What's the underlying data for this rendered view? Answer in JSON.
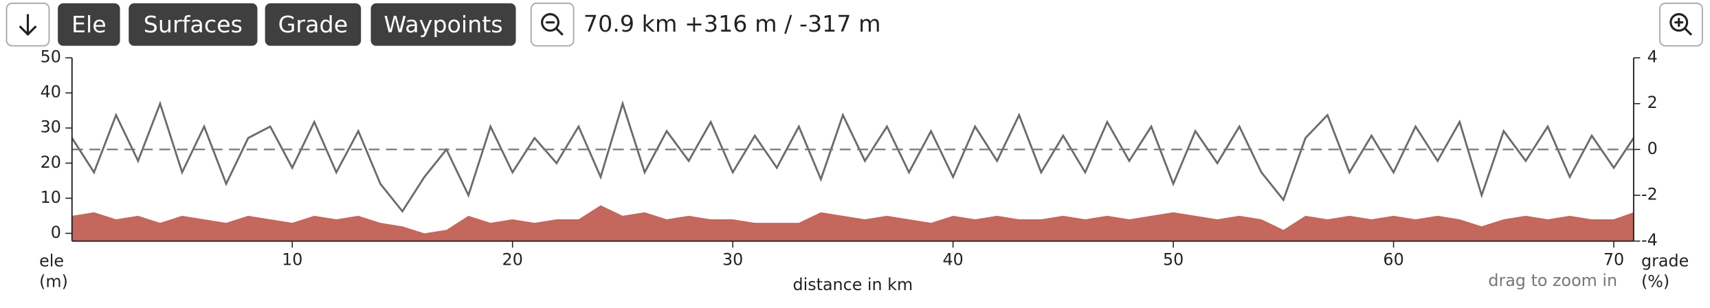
{
  "toolbar": {
    "buttons": [
      "Ele",
      "Surfaces",
      "Grade",
      "Waypoints"
    ],
    "summary": "70.9 km +316 m / -317 m"
  },
  "chart_data": {
    "type": "area-line",
    "x_label": "distance in km",
    "y_label": [
      "ele",
      "(m)"
    ],
    "y2_label": [
      "grade",
      "(%)"
    ],
    "hint": "drag to zoom in",
    "x": [
      0,
      1,
      2,
      3,
      4,
      5,
      6,
      7,
      8,
      9,
      10,
      11,
      12,
      13,
      14,
      15,
      16,
      17,
      18,
      19,
      20,
      21,
      22,
      23,
      24,
      25,
      26,
      27,
      28,
      29,
      30,
      31,
      32,
      33,
      34,
      35,
      36,
      37,
      38,
      39,
      40,
      41,
      42,
      43,
      44,
      45,
      46,
      47,
      48,
      49,
      50,
      51,
      52,
      53,
      54,
      55,
      56,
      57,
      58,
      59,
      60,
      61,
      62,
      63,
      64,
      65,
      66,
      67,
      68,
      69,
      70,
      70.9
    ],
    "series": [
      {
        "name": "ele",
        "color": "#c4675c",
        "values": [
          5,
          6,
          4,
          5,
          3,
          5,
          4,
          3,
          5,
          4,
          3,
          5,
          4,
          5,
          3,
          2,
          0,
          1,
          5,
          3,
          4,
          3,
          4,
          4,
          8,
          5,
          6,
          4,
          5,
          4,
          4,
          3,
          3,
          3,
          6,
          5,
          4,
          5,
          4,
          3,
          5,
          4,
          5,
          4,
          4,
          5,
          4,
          5,
          4,
          5,
          6,
          5,
          4,
          5,
          4,
          1,
          5,
          4,
          5,
          4,
          5,
          4,
          5,
          4,
          2,
          4,
          5,
          4,
          5,
          4,
          4,
          6
        ]
      },
      {
        "name": "grade",
        "color": "#6b6b6b",
        "axis": "y2",
        "values": [
          0.5,
          -1,
          1.5,
          -0.5,
          2,
          -1,
          1,
          -1.5,
          0.5,
          1,
          -0.8,
          1.2,
          -1,
          0.8,
          -1.5,
          -2.7,
          -1.2,
          0,
          -2,
          1,
          -1,
          0.5,
          -0.6,
          1,
          -1.2,
          2,
          -1,
          0.8,
          -0.5,
          1.2,
          -1,
          0.6,
          -0.8,
          1,
          -1.3,
          1.5,
          -0.5,
          1,
          -1,
          0.8,
          -1.2,
          1,
          -0.5,
          1.5,
          -1,
          0.6,
          -1,
          1.2,
          -0.5,
          1,
          -1.5,
          0.8,
          -0.6,
          1,
          -1,
          -2.2,
          0.5,
          1.5,
          -1,
          0.6,
          -1,
          1,
          -0.5,
          1.2,
          -2,
          0.8,
          -0.5,
          1,
          -1.2,
          0.6,
          -0.8,
          0.5
        ]
      }
    ],
    "xlim": [
      0,
      70.9
    ],
    "xticks": [
      10,
      20,
      30,
      40,
      50,
      60,
      70
    ],
    "ylim": [
      -2.2,
      50
    ],
    "yticks": [
      0,
      10,
      20,
      30,
      40,
      50
    ],
    "y2lim": [
      -4,
      4
    ],
    "y2ticks": [
      -4,
      -2,
      0,
      2,
      4
    ]
  }
}
